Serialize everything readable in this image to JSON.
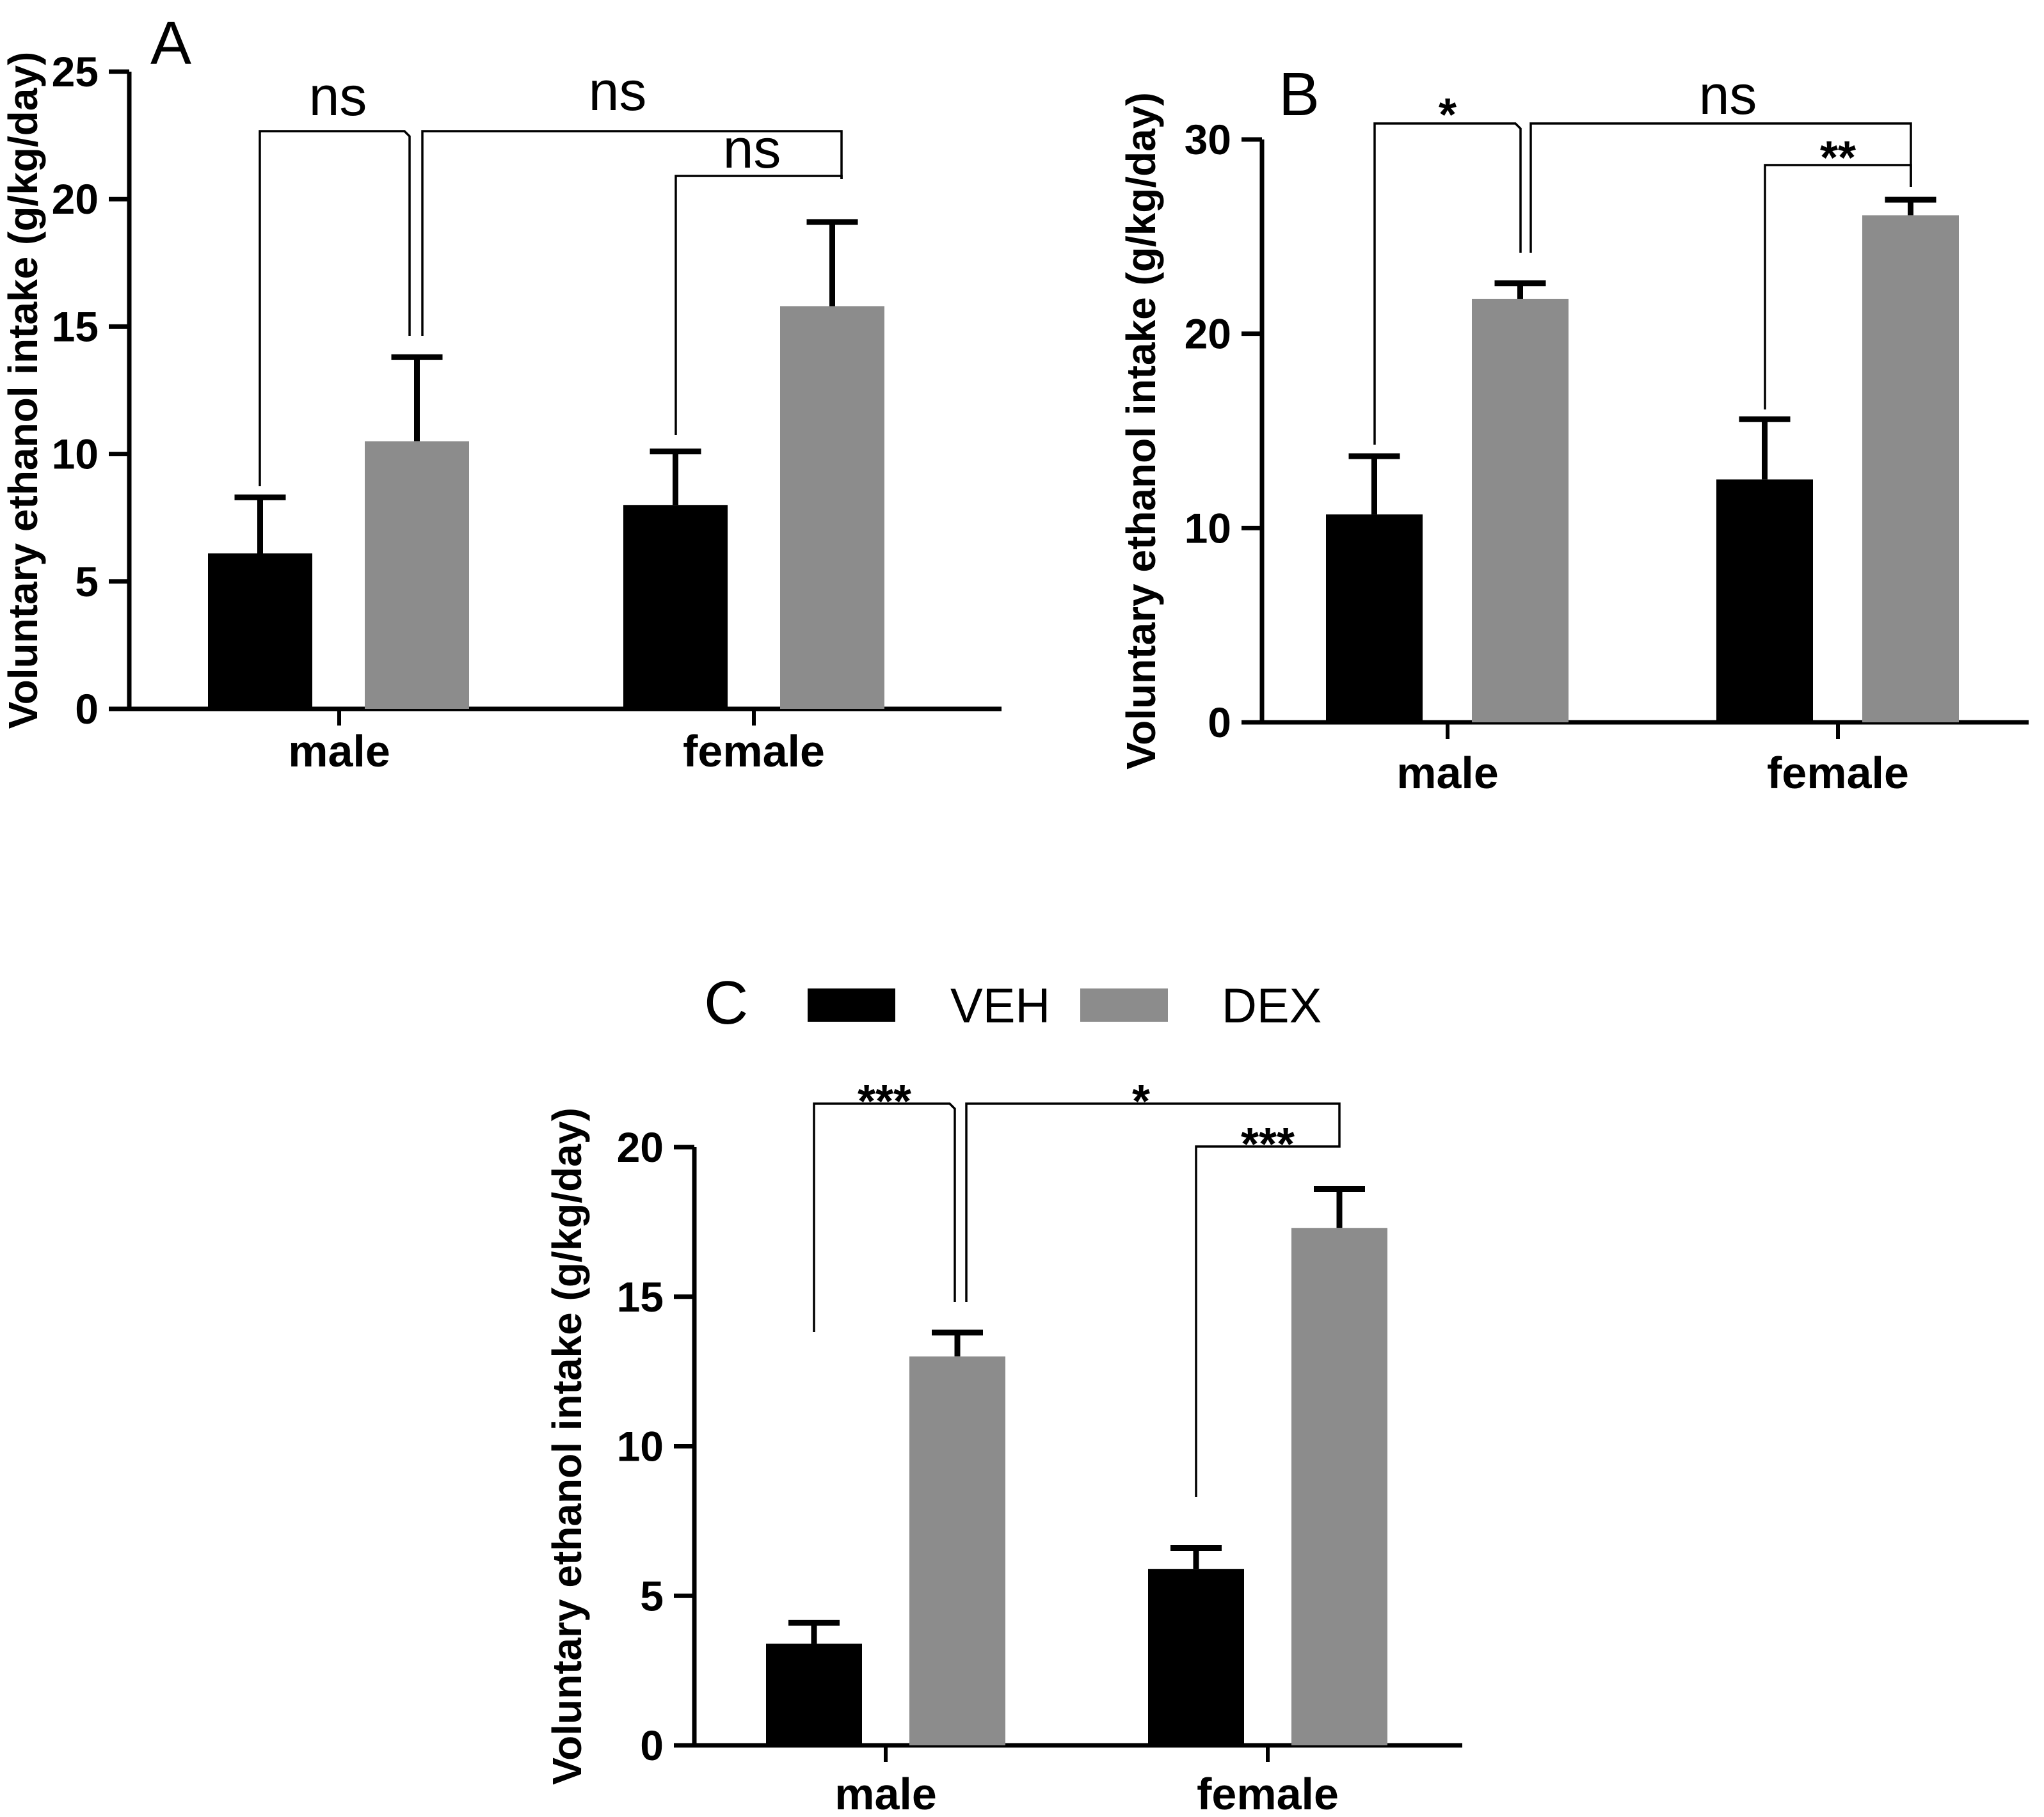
{
  "chart_data": [
    {
      "type": "bar",
      "panel": "A",
      "ylabel": "Voluntary ethanol intake (g/kg/day)",
      "ylim": [
        0,
        25
      ],
      "yticks": [
        0,
        5,
        10,
        15,
        20,
        25
      ],
      "categories": [
        "male",
        "female"
      ],
      "series": [
        {
          "name": "VEH",
          "values": [
            6.1,
            8.0
          ],
          "errors": [
            2.2,
            2.1
          ]
        },
        {
          "name": "DEX",
          "values": [
            10.5,
            15.8
          ],
          "errors": [
            3.3,
            3.3
          ]
        }
      ],
      "comparisons": [
        {
          "label": "ns",
          "from": "male-VEH",
          "to": "male-DEX"
        },
        {
          "label": "ns",
          "from": "male-DEX",
          "to": "female-DEX"
        },
        {
          "label": "ns",
          "from": "female-VEH",
          "to": "female-DEX"
        }
      ]
    },
    {
      "type": "bar",
      "panel": "B",
      "ylabel": "Voluntary ethanol intake (g/kg/day)",
      "ylim": [
        0,
        30
      ],
      "yticks": [
        0,
        10,
        20,
        30
      ],
      "categories": [
        "male",
        "female"
      ],
      "series": [
        {
          "name": "VEH",
          "values": [
            10.7,
            12.5
          ],
          "errors": [
            3.0,
            3.1
          ]
        },
        {
          "name": "DEX",
          "values": [
            21.8,
            26.1
          ],
          "errors": [
            0.8,
            0.8
          ]
        }
      ],
      "comparisons": [
        {
          "label": "*",
          "from": "male-VEH",
          "to": "male-DEX"
        },
        {
          "label": "ns",
          "from": "male-DEX",
          "to": "female-DEX"
        },
        {
          "label": "**",
          "from": "female-VEH",
          "to": "female-DEX"
        }
      ]
    },
    {
      "type": "bar",
      "panel": "C",
      "ylabel": "Voluntary ethanol intake (g/kg/day)",
      "ylim": [
        0,
        20
      ],
      "yticks": [
        0,
        5,
        10,
        15,
        20
      ],
      "categories": [
        "male",
        "female"
      ],
      "series": [
        {
          "name": "VEH",
          "values": [
            3.4,
            5.9
          ],
          "errors": [
            0.7,
            0.7
          ]
        },
        {
          "name": "DEX",
          "values": [
            13.0,
            17.3
          ],
          "errors": [
            0.8,
            1.3
          ]
        }
      ],
      "comparisons": [
        {
          "label": "***",
          "from": "male-VEH",
          "to": "male-DEX"
        },
        {
          "label": "*",
          "from": "male-DEX",
          "to": "female-DEX"
        },
        {
          "label": "***",
          "from": "female-VEH",
          "to": "female-DEX"
        }
      ],
      "legend": [
        {
          "label": "VEH",
          "color": "#000000"
        },
        {
          "label": "DEX",
          "color": "#8c8c8c"
        }
      ]
    }
  ],
  "colors": {
    "VEH": "#000000",
    "DEX": "#8c8c8c"
  }
}
